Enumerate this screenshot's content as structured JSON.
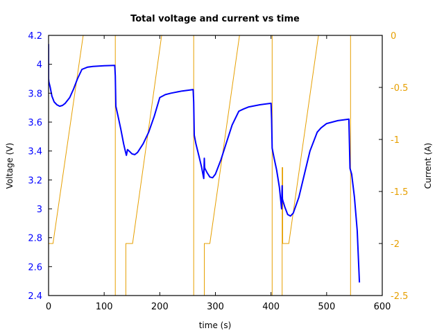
{
  "chart_data": {
    "type": "line",
    "title": "Total voltage and current vs time",
    "xlabel": "time (s)",
    "ylabel": "Voltage (V)",
    "y2label": "Current (A)",
    "xlim": [
      0,
      600
    ],
    "ylim": [
      2.4,
      4.2
    ],
    "y2lim": [
      -2.5,
      0
    ],
    "xticks": [
      0,
      100,
      200,
      300,
      400,
      500,
      600
    ],
    "yticks": [
      2.4,
      2.6,
      2.8,
      3.0,
      3.2,
      3.4,
      3.6,
      3.8,
      4.0,
      4.2
    ],
    "ytick_labels": [
      "2.4",
      "2.6",
      "2.8",
      "3",
      "3.2",
      "3.4",
      "3.6",
      "3.8",
      "4",
      "4.2"
    ],
    "y2ticks": [
      -2.5,
      -2,
      -1.5,
      -1,
      -0.5,
      0
    ],
    "y2tick_labels": [
      "-2.5",
      "-2",
      "-1.5",
      "-1",
      "-0.5",
      "0"
    ],
    "grid": false,
    "legend": null,
    "colors": {
      "voltage": "#0000ff",
      "current": "#e69f00",
      "axes": "#000000"
    },
    "series": [
      {
        "name": "Voltage",
        "axis": "left",
        "x": [
          0,
          0,
          0.5,
          3,
          6,
          10,
          15,
          20,
          25,
          30,
          38,
          45,
          52,
          60,
          70,
          80,
          90,
          100,
          110,
          119,
          120,
          121,
          125,
          130,
          135,
          138,
          140,
          142,
          145,
          150,
          155,
          160,
          170,
          180,
          190,
          200,
          210,
          220,
          240,
          260,
          261,
          262,
          265,
          270,
          275,
          279,
          280,
          280.5,
          281,
          285,
          290,
          295,
          300,
          310,
          320,
          330,
          342,
          350,
          360,
          380,
          400,
          401,
          402,
          405,
          410,
          415,
          419,
          420,
          420.5,
          421,
          425,
          430,
          435,
          440,
          450,
          460,
          470,
          483,
          490,
          500,
          520,
          540,
          541,
          542,
          545,
          550,
          555,
          559
        ],
        "values": [
          4.14,
          3.9,
          3.88,
          3.84,
          3.78,
          3.74,
          3.72,
          3.71,
          3.715,
          3.73,
          3.77,
          3.83,
          3.9,
          3.965,
          3.98,
          3.985,
          3.988,
          3.99,
          3.991,
          3.992,
          3.92,
          3.71,
          3.64,
          3.55,
          3.45,
          3.4,
          3.37,
          3.41,
          3.4,
          3.38,
          3.375,
          3.39,
          3.45,
          3.53,
          3.64,
          3.77,
          3.79,
          3.8,
          3.815,
          3.825,
          3.74,
          3.51,
          3.45,
          3.37,
          3.29,
          3.21,
          3.35,
          3.29,
          3.28,
          3.25,
          3.22,
          3.215,
          3.24,
          3.34,
          3.46,
          3.58,
          3.675,
          3.69,
          3.705,
          3.72,
          3.73,
          3.62,
          3.42,
          3.36,
          3.27,
          3.15,
          3.0,
          3.16,
          3.07,
          3.06,
          3.01,
          2.96,
          2.95,
          2.97,
          3.08,
          3.24,
          3.4,
          3.53,
          3.56,
          3.59,
          3.61,
          3.62,
          3.45,
          3.28,
          3.24,
          3.08,
          2.85,
          2.49
        ]
      },
      {
        "name": "Current",
        "axis": "right",
        "x": [
          0,
          8,
          65,
          120,
          120,
          139,
          139,
          151,
          206,
          261,
          261,
          280,
          280,
          290,
          346,
          402,
          402,
          420,
          420,
          421,
          421,
          432,
          488,
          543,
          543,
          560
        ],
        "values": [
          -2,
          -2,
          0.1,
          0.1,
          -2.6,
          -2.6,
          -2,
          -2,
          0.1,
          0.1,
          -2.6,
          -2.6,
          -2,
          -2,
          0.1,
          0.1,
          -2.6,
          -2.6,
          -1.27,
          -1.27,
          -2,
          -2,
          0.1,
          0.1,
          -2.6,
          -2.6
        ]
      }
    ]
  }
}
